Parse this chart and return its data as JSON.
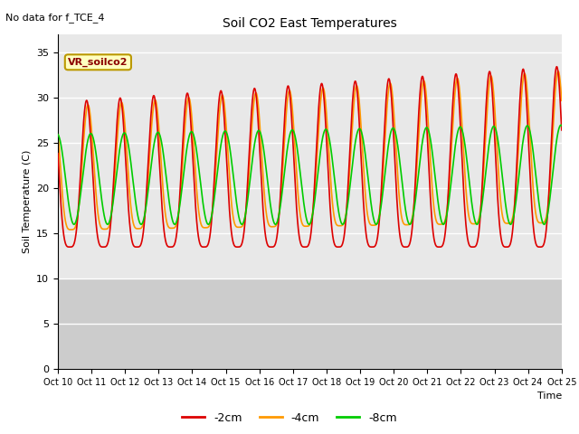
{
  "title": "Soil CO2 East Temperatures",
  "subtitle": "No data for f_TCE_4",
  "xlabel": "Time",
  "ylabel": "Soil Temperature (C)",
  "ylim": [
    0,
    37
  ],
  "yticks": [
    0,
    5,
    10,
    15,
    20,
    25,
    30,
    35
  ],
  "xtick_labels": [
    "Oct 10",
    "Oct 11",
    "Oct 12",
    "Oct 13",
    "Oct 14",
    "Oct 15",
    "Oct 16",
    "Oct 17",
    "Oct 18",
    "Oct 19",
    "Oct 20",
    "Oct 21",
    "Oct 22",
    "Oct 23",
    "Oct 24",
    "Oct 25"
  ],
  "legend_label": "VR_soilco2",
  "series_labels": [
    "-2cm",
    "-4cm",
    "-8cm"
  ],
  "series_colors": [
    "#dd0000",
    "#ff9900",
    "#00cc00"
  ],
  "bg_color_upper": "#e8e8e8",
  "bg_color_lower": "#cccccc",
  "grid_color": "#ffffff",
  "period": 24,
  "num_days": 15
}
